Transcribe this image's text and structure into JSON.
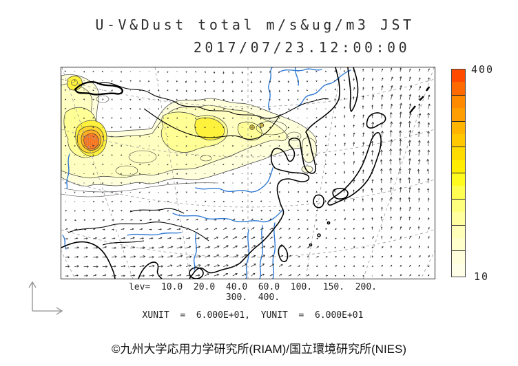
{
  "header": {
    "title": "U-V&Dust total m/s&ug/m3 JST",
    "datetime": "2017/07/23.12:00:00"
  },
  "colorbar": {
    "max_label": "400",
    "min_label": "10",
    "colors_top_to_bottom": [
      "#FF4A00",
      "#FF6A00",
      "#FF8A00",
      "#FF9E00",
      "#FFB400",
      "#FFC800",
      "#FFDC00",
      "#FFEE00",
      "#FFFB1E",
      "#FFFF52",
      "#FFFF7E",
      "#FFFFA0",
      "#FFFFBA",
      "#FFFFCC",
      "#FFFFDB",
      "#FFFFE8"
    ]
  },
  "legend": {
    "levels_line1": "lev=  10.0  20.0  40.0  60.0  100.  150.  200.",
    "levels_line2": "300.  400.",
    "units_line": "XUNIT  =  6.000E+01,  YUNIT  =  6.000E+01",
    "levels": [
      10,
      20,
      40,
      60,
      100,
      150,
      200,
      300,
      400
    ]
  },
  "footer": {
    "credit": "©九州大学応用力学研究所(RIAM)/国立環境研究所(NIES)"
  },
  "map": {
    "coast_color": "#000000",
    "river_color": "#2f79d3",
    "contour_color": "#3a3a3a",
    "graticule_color": "#9a9a9a",
    "vector_color": "#2b2b2b",
    "hatch_color": "#e2450f",
    "fill_levels": [
      {
        "level": 10,
        "color": "#FFFFDC"
      },
      {
        "level": 20,
        "color": "#FFFFC2"
      },
      {
        "level": 40,
        "color": "#FFFF96"
      },
      {
        "level": 60,
        "color": "#FFF23C"
      },
      {
        "level": 100,
        "color": "#FFD72E"
      },
      {
        "level": 150,
        "color": "#FFAF24"
      },
      {
        "level": 200,
        "color": "#F8842C"
      }
    ],
    "vectors": {
      "spacing": 13.5,
      "max_len": 10.5
    }
  },
  "chart_data": {
    "type": "contour_map",
    "title": "U-V&Dust total m/s&ug/m3 JST",
    "timestamp": "2017/07/23.12:00:00",
    "contour_levels": [
      10,
      20,
      40,
      60,
      100,
      150,
      200,
      300,
      400
    ],
    "colorbar_range": [
      10,
      400
    ],
    "xunit": "6.000E+01",
    "yunit": "6.000E+01"
  }
}
